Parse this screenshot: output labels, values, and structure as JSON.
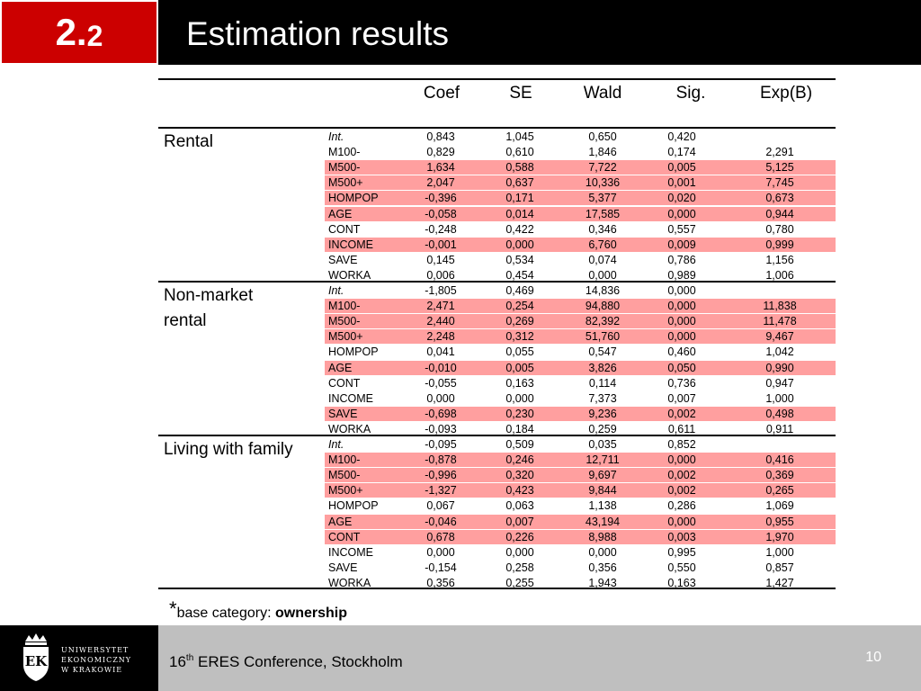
{
  "header": {
    "section_major": "2.",
    "section_minor": "2",
    "title": "Estimation results"
  },
  "table": {
    "columns": [
      "Coef",
      "SE",
      "Wald",
      "Sig.",
      "Exp(B)"
    ],
    "groups": [
      {
        "label_lines": [
          "Rental"
        ],
        "rows": [
          {
            "var": "Int.",
            "italic": true,
            "coef": "0,843",
            "se": "1,045",
            "wald": "0,650",
            "sig": "0,420",
            "exp": "",
            "hl": false
          },
          {
            "var": "M100-",
            "coef": "0,829",
            "se": "0,610",
            "wald": "1,846",
            "sig": "0,174",
            "exp": "2,291",
            "hl": false
          },
          {
            "var": "M500-",
            "coef": "1,634",
            "se": "0,588",
            "wald": "7,722",
            "sig": "0,005",
            "exp": "5,125",
            "hl": true
          },
          {
            "var": "M500+",
            "coef": "2,047",
            "se": "0,637",
            "wald": "10,336",
            "sig": "0,001",
            "exp": "7,745",
            "hl": true
          },
          {
            "var": "HOMPOP",
            "coef": "-0,396",
            "se": "0,171",
            "wald": "5,377",
            "sig": "0,020",
            "exp": "0,673",
            "hl": true
          },
          {
            "var": "AGE",
            "coef": "-0,058",
            "se": "0,014",
            "wald": "17,585",
            "sig": "0,000",
            "exp": "0,944",
            "hl": true
          },
          {
            "var": "CONT",
            "coef": "-0,248",
            "se": "0,422",
            "wald": "0,346",
            "sig": "0,557",
            "exp": "0,780",
            "hl": false
          },
          {
            "var": "INCOME",
            "coef": "-0,001",
            "se": "0,000",
            "wald": "6,760",
            "sig": "0,009",
            "exp": "0,999",
            "hl": true
          },
          {
            "var": "SAVE",
            "coef": "0,145",
            "se": "0,534",
            "wald": "0,074",
            "sig": "0,786",
            "exp": "1,156",
            "hl": false
          },
          {
            "var": "WORKA",
            "coef": "0,006",
            "se": "0,454",
            "wald": "0,000",
            "sig": "0,989",
            "exp": "1,006",
            "hl": false
          }
        ]
      },
      {
        "label_lines": [
          "Non-market",
          "rental"
        ],
        "rows": [
          {
            "var": "Int.",
            "italic": true,
            "coef": "-1,805",
            "se": "0,469",
            "wald": "14,836",
            "sig": "0,000",
            "exp": "",
            "hl": false
          },
          {
            "var": "M100-",
            "coef": "2,471",
            "se": "0,254",
            "wald": "94,880",
            "sig": "0,000",
            "exp": "11,838",
            "hl": true
          },
          {
            "var": "M500-",
            "coef": "2,440",
            "se": "0,269",
            "wald": "82,392",
            "sig": "0,000",
            "exp": "11,478",
            "hl": true
          },
          {
            "var": "M500+",
            "coef": "2,248",
            "se": "0,312",
            "wald": "51,760",
            "sig": "0,000",
            "exp": "9,467",
            "hl": true
          },
          {
            "var": "HOMPOP",
            "coef": "0,041",
            "se": "0,055",
            "wald": "0,547",
            "sig": "0,460",
            "exp": "1,042",
            "hl": false
          },
          {
            "var": "AGE",
            "coef": "-0,010",
            "se": "0,005",
            "wald": "3,826",
            "sig": "0,050",
            "exp": "0,990",
            "hl": true
          },
          {
            "var": "CONT",
            "coef": "-0,055",
            "se": "0,163",
            "wald": "0,114",
            "sig": "0,736",
            "exp": "0,947",
            "hl": false
          },
          {
            "var": "INCOME",
            "coef": "0,000",
            "se": "0,000",
            "wald": "7,373",
            "sig": "0,007",
            "exp": "1,000",
            "hl": false
          },
          {
            "var": "SAVE",
            "coef": "-0,698",
            "se": "0,230",
            "wald": "9,236",
            "sig": "0,002",
            "exp": "0,498",
            "hl": true
          },
          {
            "var": "WORKA",
            "coef": "-0,093",
            "se": "0,184",
            "wald": "0,259",
            "sig": "0,611",
            "exp": "0,911",
            "hl": false
          }
        ]
      },
      {
        "label_lines": [
          "Living with family"
        ],
        "rows": [
          {
            "var": "Int.",
            "italic": true,
            "coef": "-0,095",
            "se": "0,509",
            "wald": "0,035",
            "sig": "0,852",
            "exp": "",
            "hl": false
          },
          {
            "var": "M100-",
            "coef": "-0,878",
            "se": "0,246",
            "wald": "12,711",
            "sig": "0,000",
            "exp": "0,416",
            "hl": true
          },
          {
            "var": "M500-",
            "coef": "-0,996",
            "se": "0,320",
            "wald": "9,697",
            "sig": "0,002",
            "exp": "0,369",
            "hl": true
          },
          {
            "var": "M500+",
            "coef": "-1,327",
            "se": "0,423",
            "wald": "9,844",
            "sig": "0,002",
            "exp": "0,265",
            "hl": true
          },
          {
            "var": "HOMPOP",
            "coef": "0,067",
            "se": "0,063",
            "wald": "1,138",
            "sig": "0,286",
            "exp": "1,069",
            "hl": false
          },
          {
            "var": "AGE",
            "coef": "-0,046",
            "se": "0,007",
            "wald": "43,194",
            "sig": "0,000",
            "exp": "0,955",
            "hl": true
          },
          {
            "var": "CONT",
            "coef": "0,678",
            "se": "0,226",
            "wald": "8,988",
            "sig": "0,003",
            "exp": "1,970",
            "hl": true
          },
          {
            "var": "INCOME",
            "coef": "0,000",
            "se": "0,000",
            "wald": "0,000",
            "sig": "0,995",
            "exp": "1,000",
            "hl": false
          },
          {
            "var": "SAVE",
            "coef": "-0,154",
            "se": "0,258",
            "wald": "0,356",
            "sig": "0,550",
            "exp": "0,857",
            "hl": false
          },
          {
            "var": "WORKA",
            "coef": "0,356",
            "se": "0,255",
            "wald": "1,943",
            "sig": "0,163",
            "exp": "1,427",
            "hl": false
          }
        ]
      }
    ]
  },
  "footnote": {
    "star": "*",
    "text": "base category: ",
    "emphasis": "ownership"
  },
  "footer": {
    "logo_lines": [
      "UNIWERSYTET",
      "EKONOMICZNY",
      "W KRAKOWIE"
    ],
    "conference_prefix": "16",
    "conference_sup": "th",
    "conference_rest": " ERES Conference, Stockholm",
    "page_number": "10"
  },
  "colors": {
    "highlight": "#ff9f9f",
    "badge": "#cc0000",
    "header_bg": "#000000",
    "footer_bg": "#bfbfbf"
  }
}
